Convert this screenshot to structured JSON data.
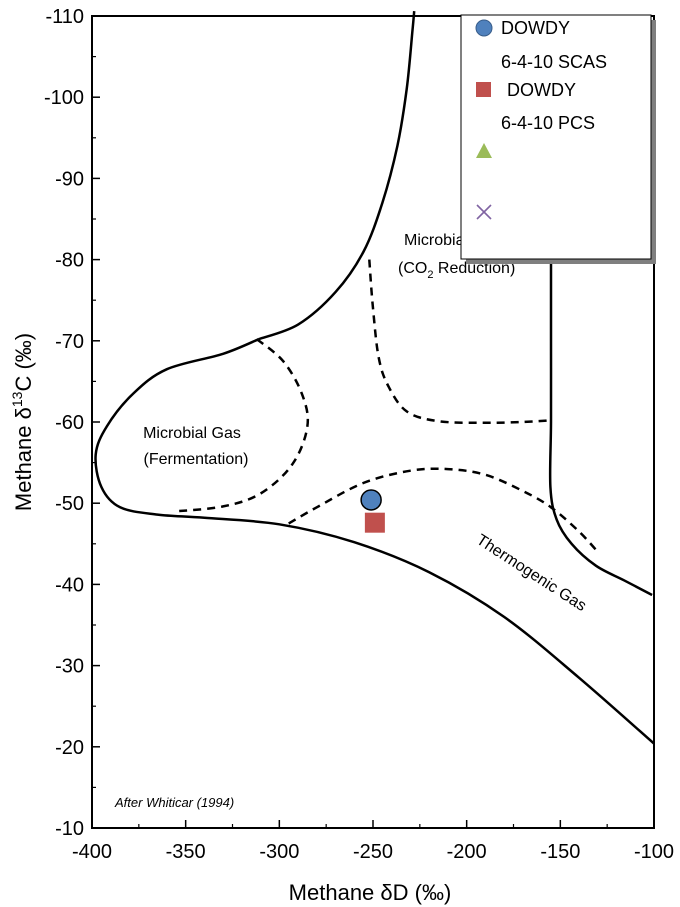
{
  "chart_data": {
    "type": "scatter",
    "xlabel": "Methane δD (‰)",
    "ylabel_parts": {
      "pre": "Methane δ",
      "sup": "13",
      "post": "C (‰)"
    },
    "xlim": [
      -400,
      -100
    ],
    "ylim": [
      -10,
      -110
    ],
    "x_ticks": [
      -400,
      -350,
      -300,
      -250,
      -200,
      -150,
      -100
    ],
    "y_ticks": [
      -10,
      -20,
      -30,
      -40,
      -50,
      -60,
      -70,
      -80,
      -90,
      -100,
      -110
    ],
    "x_tick_labels": [
      "-400",
      "-350",
      "-300",
      "-250",
      "-200",
      "-150",
      "-100"
    ],
    "y_tick_labels": [
      "-10",
      "-20",
      "-30",
      "-40",
      "-50",
      "-60",
      "-70",
      "-80",
      "-90",
      "-100",
      "-110"
    ],
    "grid": false,
    "legend_position": "top-right",
    "series": [
      {
        "name_line1": "DOWDY",
        "name_line2": "6-4-10 SCAS",
        "marker": "circle",
        "color": "#4f81bd",
        "points": [
          [
            -251,
            -50.4
          ]
        ]
      },
      {
        "name_line1": "DOWDY",
        "name_line2": "6-4-10 PCS",
        "marker": "square",
        "color": "#c0504d",
        "points": [
          [
            -249,
            -47.6
          ]
        ]
      },
      {
        "marker": "triangle",
        "color": "#9bbb59",
        "points": []
      },
      {
        "marker": "x",
        "color": "#8064a2",
        "points": []
      }
    ],
    "boundaries": {
      "solid_outer": [
        [
          -311,
          -70.2
        ],
        [
          -330,
          -68.4
        ],
        [
          -360,
          -66.5
        ],
        [
          -378,
          -63.5
        ],
        [
          -392,
          -59.5
        ],
        [
          -398,
          -56.0
        ],
        [
          -395,
          -52.0
        ],
        [
          -385,
          -49.5
        ],
        [
          -365,
          -48.6
        ],
        [
          -340,
          -48.2
        ],
        [
          -300,
          -47.4
        ],
        [
          -260,
          -45.2
        ],
        [
          -220,
          -41.5
        ],
        [
          -180,
          -36.0
        ],
        [
          -140,
          -28.5
        ],
        [
          -100,
          -20.4
        ]
      ],
      "solid_upper": [
        [
          -311,
          -70.2
        ],
        [
          -290,
          -72.0
        ],
        [
          -270,
          -76.0
        ],
        [
          -255,
          -81.0
        ],
        [
          -245,
          -87.0
        ],
        [
          -237,
          -94.0
        ],
        [
          -232,
          -101.0
        ],
        [
          -229,
          -108.0
        ],
        [
          -228,
          -110.6
        ]
      ],
      "solid_right": [
        [
          -155,
          -90.0
        ],
        [
          -155,
          -80.0
        ],
        [
          -155,
          -70.0
        ],
        [
          -155,
          -60.0
        ],
        [
          -155.3,
          -52.0
        ],
        [
          -152,
          -48.0
        ],
        [
          -144,
          -45.0
        ],
        [
          -131,
          -42.3
        ],
        [
          -116,
          -40.5
        ],
        [
          -101,
          -38.7
        ]
      ],
      "dashed_co2": [
        [
          -252,
          -80.0
        ],
        [
          -250,
          -74.0
        ],
        [
          -247,
          -68.0
        ],
        [
          -242,
          -64.5
        ],
        [
          -232,
          -61.3
        ],
        [
          -215,
          -60.1
        ],
        [
          -190,
          -59.9
        ],
        [
          -170,
          -60.0
        ],
        [
          -155.5,
          -60.2
        ]
      ],
      "dashed_fermentation": [
        [
          -312,
          -70.2
        ],
        [
          -298,
          -67.5
        ],
        [
          -288,
          -63.5
        ],
        [
          -285,
          -59.5
        ],
        [
          -293,
          -54.8
        ],
        [
          -310,
          -51.2
        ],
        [
          -330,
          -49.6
        ],
        [
          -355,
          -49.0
        ]
      ],
      "dashed_thermogenic": [
        [
          -295,
          -47.5
        ],
        [
          -280,
          -49.5
        ],
        [
          -255,
          -52.5
        ],
        [
          -230,
          -54.0
        ],
        [
          -210,
          -54.2
        ],
        [
          -190,
          -53.5
        ],
        [
          -170,
          -51.5
        ],
        [
          -155,
          -49.5
        ],
        [
          -140,
          -46.5
        ],
        [
          -130,
          -44.0
        ]
      ]
    },
    "region_labels": {
      "fermentation_line1": "Microbial Gas",
      "fermentation_line2": "(Fermentation)",
      "co2_line1": "Microbial Gas",
      "co2_line2_pre": "(CO",
      "co2_line2_sub": "2",
      "co2_line2_post": " Reduction)",
      "thermogenic": "Thermogenic Gas"
    },
    "annotation": "After Whiticar (1994)"
  }
}
